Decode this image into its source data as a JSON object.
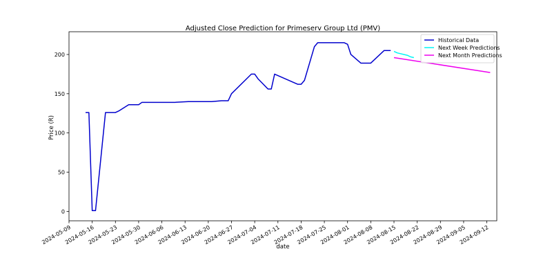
{
  "chart_data": {
    "type": "line",
    "title": "Adjusted Close Prediction for Primeserv Group Ltd (PMV)",
    "xlabel": "date",
    "ylabel": "Price (R)",
    "xlim": [
      "2024-05-09",
      "2024-09-15"
    ],
    "ylim": [
      -12,
      229
    ],
    "x_ticks": [
      "2024-05-09",
      "2024-05-16",
      "2024-05-23",
      "2024-05-30",
      "2024-06-06",
      "2024-06-13",
      "2024-06-20",
      "2024-06-27",
      "2024-07-04",
      "2024-07-11",
      "2024-07-18",
      "2024-07-25",
      "2024-08-01",
      "2024-08-08",
      "2024-08-15",
      "2024-08-22",
      "2024-08-29",
      "2024-09-05",
      "2024-09-12"
    ],
    "y_ticks": [
      0,
      50,
      100,
      150,
      200
    ],
    "grid": false,
    "legend_position": "top-right",
    "series": [
      {
        "name": "Historical Data",
        "color": "#0000cd",
        "x": [
          "2024-05-14",
          "2024-05-15",
          "2024-05-16",
          "2024-05-17",
          "2024-05-20",
          "2024-05-21",
          "2024-05-22",
          "2024-05-23",
          "2024-05-24",
          "2024-05-27",
          "2024-05-28",
          "2024-05-29",
          "2024-05-30",
          "2024-05-31",
          "2024-06-03",
          "2024-06-07",
          "2024-06-10",
          "2024-06-14",
          "2024-06-21",
          "2024-06-24",
          "2024-06-25",
          "2024-06-26",
          "2024-06-27",
          "2024-07-03",
          "2024-07-04",
          "2024-07-05",
          "2024-07-08",
          "2024-07-09",
          "2024-07-10",
          "2024-07-17",
          "2024-07-18",
          "2024-07-19",
          "2024-07-22",
          "2024-07-23",
          "2024-07-24",
          "2024-07-25",
          "2024-07-31",
          "2024-08-01",
          "2024-08-02",
          "2024-08-05",
          "2024-08-08",
          "2024-08-12",
          "2024-08-14"
        ],
        "y": [
          126,
          126,
          1,
          1,
          126,
          126,
          126,
          126,
          128,
          136,
          136,
          136,
          136,
          139,
          139,
          139,
          139,
          140,
          140,
          141,
          141,
          141,
          150,
          175,
          175,
          169,
          156,
          156,
          175,
          162,
          162,
          167,
          210,
          215,
          215,
          215,
          215,
          213,
          200,
          189,
          189,
          205,
          205
        ]
      },
      {
        "name": "Next Week Predictions",
        "color": "#00f5f5",
        "x": [
          "2024-08-15",
          "2024-08-16",
          "2024-08-19",
          "2024-08-20",
          "2024-08-21"
        ],
        "y": [
          204,
          202,
          199,
          197,
          196
        ]
      },
      {
        "name": "Next Month Predictions",
        "color": "#ee00ee",
        "x": [
          "2024-08-15",
          "2024-09-13"
        ],
        "y": [
          196,
          177
        ]
      }
    ]
  }
}
